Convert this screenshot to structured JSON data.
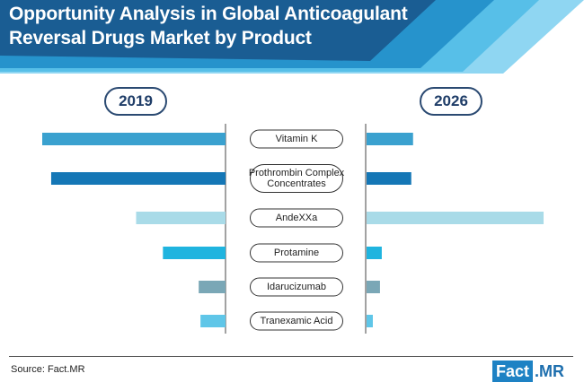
{
  "title_line1": "Opportunity Analysis in Global Anticoagulant",
  "title_line2": "Reversal Drugs Market by Product",
  "source": "Source: Fact.MR",
  "logo": {
    "part1": "Fact",
    "part2": ".MR"
  },
  "colors": {
    "header_dark": "#1a5d93",
    "header_mid": "#2693cc",
    "header_light": "#57bfe8",
    "header_lightest": "#8fd6f2"
  },
  "chart_data": {
    "type": "bar",
    "orientation": "horizontal-butterfly",
    "series": [
      {
        "name": "2019",
        "values": [
          205,
          195,
          100,
          70,
          30,
          28
        ]
      },
      {
        "name": "2026",
        "values": [
          52,
          50,
          198,
          17,
          15,
          7
        ]
      }
    ],
    "categories": [
      {
        "name": "Vitamin K",
        "lines": [
          "Vitamin K"
        ],
        "color": "#3aa1cf"
      },
      {
        "name": "Prothrombin Complex Concentrates",
        "lines": [
          "Prothrombin Complex",
          "Concentrates"
        ],
        "color": "#1577b6"
      },
      {
        "name": "AndeXXa",
        "lines": [
          "AndeXXa"
        ],
        "color": "#a9dbe8"
      },
      {
        "name": "Protamine",
        "lines": [
          "Protamine"
        ],
        "color": "#1fb4df"
      },
      {
        "name": "Idarucizumab",
        "lines": [
          "Idarucizumab"
        ],
        "color": "#7aa7b6"
      },
      {
        "name": "Tranexamic Acid",
        "lines": [
          "Tranexamic Acid"
        ],
        "color": "#5fc6e8"
      }
    ],
    "xlim": [
      0,
      205
    ]
  }
}
